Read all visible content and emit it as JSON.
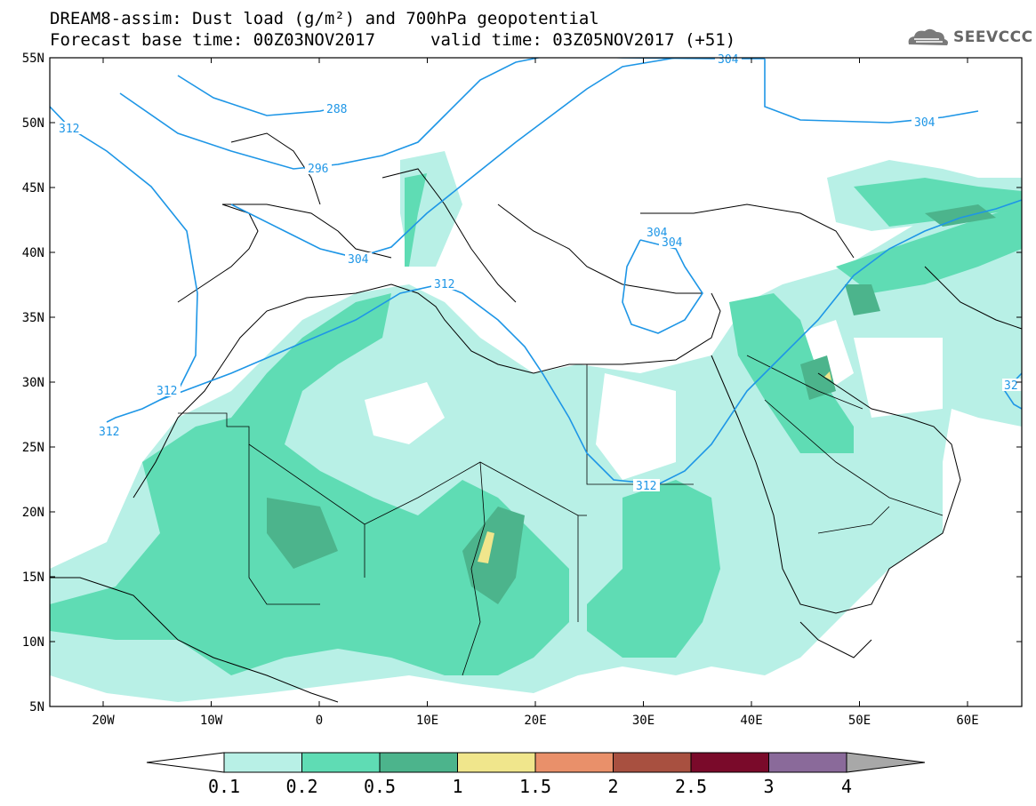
{
  "header": {
    "title_line1": "DREAM8-assim: Dust load (g/m²) and 700hPa geopotential",
    "base_time": "Forecast base time: 00Z03NOV2017",
    "valid_time": "valid time: 03Z05NOV2017 (+51)"
  },
  "logo": {
    "text": "SEEVCCC",
    "icon": "cloud-icon"
  },
  "map": {
    "lat_labels": [
      "55N",
      "50N",
      "45N",
      "40N",
      "35N",
      "30N",
      "25N",
      "20N",
      "15N",
      "10N",
      "5N"
    ],
    "lon_labels": [
      "20W",
      "10W",
      "0",
      "10E",
      "20E",
      "30E",
      "40E",
      "50E",
      "60E"
    ],
    "contour_labels": [
      "312",
      "288",
      "296",
      "304",
      "304",
      "304",
      "312",
      "312",
      "312",
      "312",
      "304",
      "304",
      "32"
    ]
  },
  "colorbar": {
    "labels": [
      "0.1",
      "0.2",
      "0.5",
      "1",
      "1.5",
      "2",
      "2.5",
      "3",
      "4"
    ],
    "colors": [
      "#ffffff",
      "#b8f0e6",
      "#5fdcb4",
      "#4cb48c",
      "#f0e68c",
      "#e9906a",
      "#a85040",
      "#7a0a2a",
      "#8a6a9a",
      "#a8a8a8"
    ]
  },
  "colors": {
    "contour": "#1e96e6",
    "dust_low": "#b8f0e6",
    "dust_mid": "#5fdcb4",
    "dust_high": "#4cb48c",
    "dust_peak": "#f0e68c"
  }
}
